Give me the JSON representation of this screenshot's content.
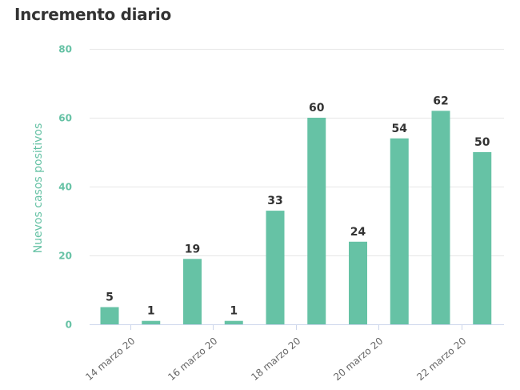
{
  "page": {
    "title": "Incremento diario"
  },
  "colors": {
    "bar": "#66c2a5",
    "axis_text": "#66c2a5",
    "grid": "#e6e6e6",
    "axis_line": "#ccd6eb",
    "data_label": "#333333",
    "x_tick_text": "#666666",
    "title": "#333333"
  },
  "chart_data": {
    "type": "bar",
    "title": "Incremento diario",
    "xlabel": "",
    "ylabel": "Nuevos casos positivos",
    "categories": [
      "2020-03-14",
      "2020-03-15",
      "2020-03-16",
      "2020-03-17",
      "2020-03-18",
      "2020-03-19",
      "2020-03-20",
      "2020-03-21",
      "2020-03-22",
      "2020-03-23"
    ],
    "values": [
      5,
      1,
      19,
      1,
      33,
      60,
      24,
      54,
      62,
      50
    ],
    "ylim": [
      0,
      80
    ],
    "yticks": [
      0,
      20,
      40,
      60,
      80
    ],
    "ytick_labels": [
      "0",
      "20",
      "40",
      "60",
      "80"
    ],
    "xtick_labels": [
      "14 marzo 20",
      "16 marzo 20",
      "18 marzo 20",
      "20 marzo 20",
      "22 marzo 20"
    ],
    "xtick_categories": [
      "2020-03-14",
      "2020-03-16",
      "2020-03-18",
      "2020-03-20",
      "2020-03-22"
    ],
    "data_labels": [
      "5",
      "1",
      "19",
      "1",
      "33",
      "60",
      "24",
      "54",
      "62",
      "50"
    ],
    "grid": true,
    "legend": "none"
  }
}
